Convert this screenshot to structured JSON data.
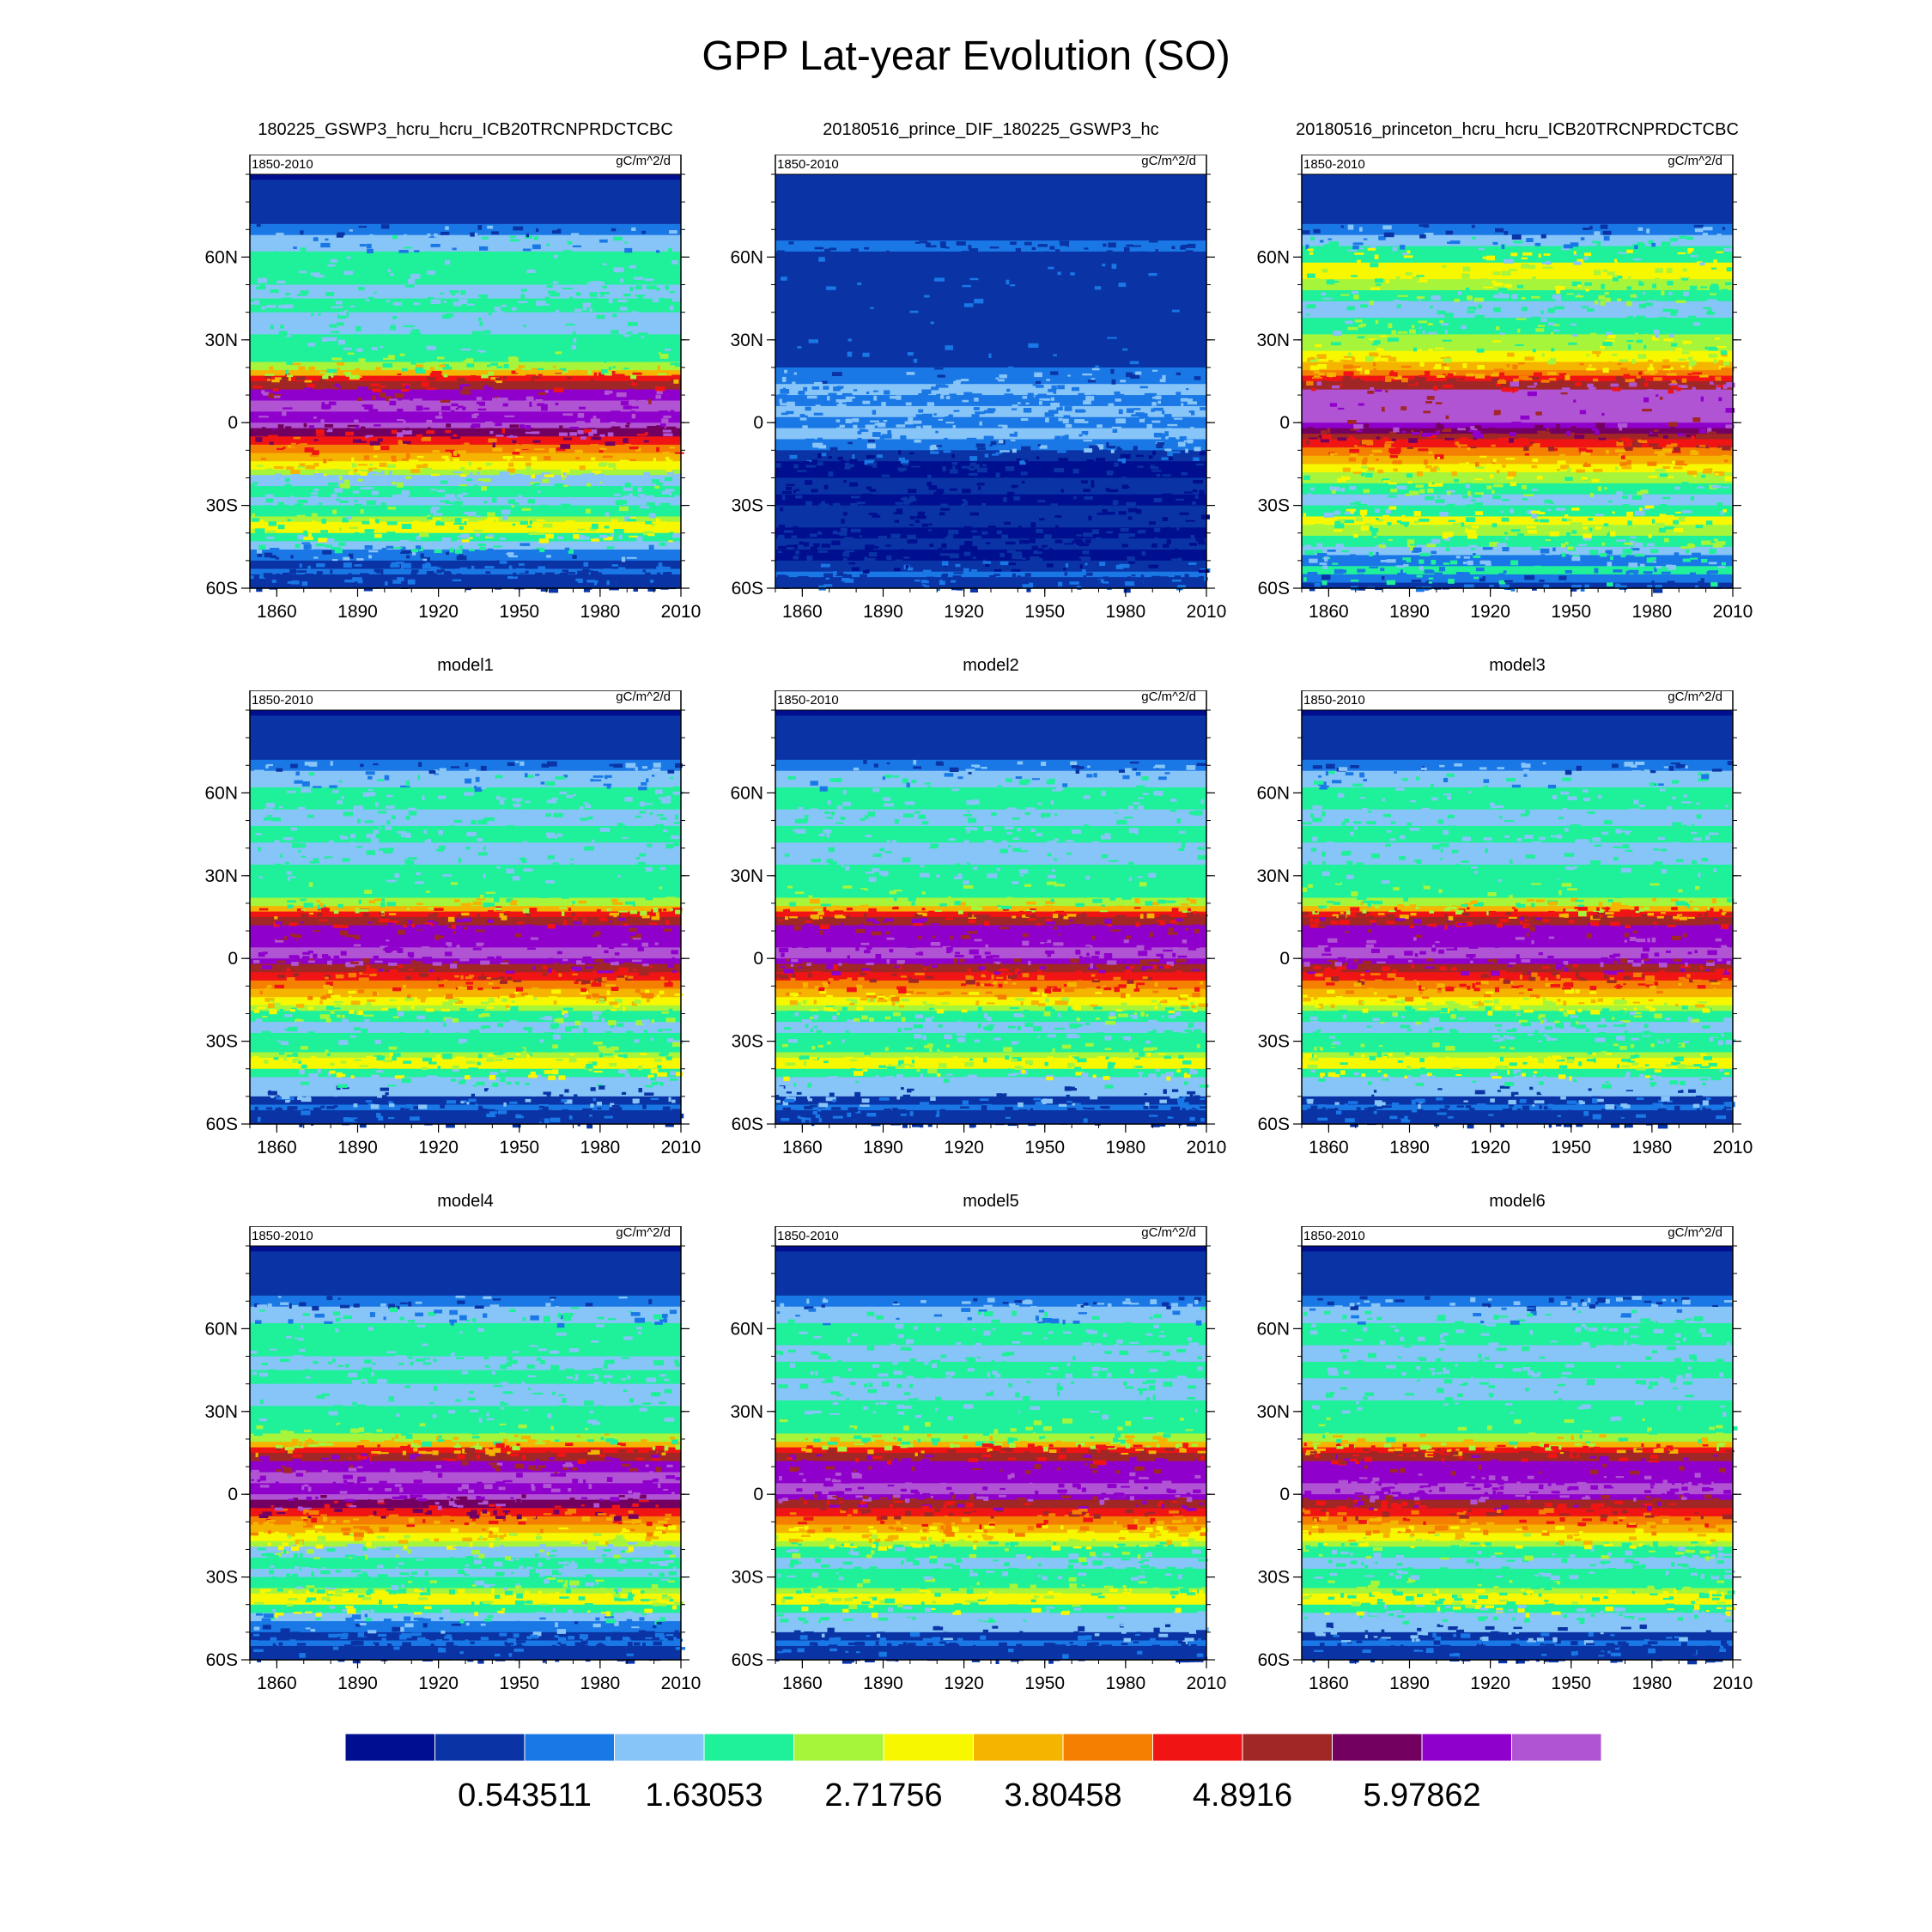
{
  "figure": {
    "title": "GPP Lat-year Evolution (SO)"
  },
  "chart_data": [
    {
      "type": "heatmap",
      "title": "180225_GSWP3_hcru_hcru_ICB20TRCNPRDCTCBC",
      "left_label": "1850-2010",
      "right_label": "gC/m^2/d",
      "pattern": "control",
      "x_ticks": [
        "1860",
        "1890",
        "1920",
        "1950",
        "1980",
        "2010"
      ],
      "y_ticks": [
        "60N",
        "30N",
        "0",
        "30S",
        "60S"
      ],
      "xlim": [
        1850,
        2010
      ],
      "ylim": [
        -60,
        90
      ]
    },
    {
      "type": "heatmap",
      "title": "20180516_prince_DIF_180225_GSWP3_hc",
      "left_label": "1850-2010",
      "right_label": "gC/m^2/d",
      "pattern": "diff",
      "x_ticks": [
        "1860",
        "1890",
        "1920",
        "1950",
        "1980",
        "2010"
      ],
      "y_ticks": [
        "60N",
        "30N",
        "0",
        "30S",
        "60S"
      ],
      "xlim": [
        1850,
        2010
      ],
      "ylim": [
        -60,
        90
      ]
    },
    {
      "type": "heatmap",
      "title": "20180516_princeton_hcru_hcru_ICB20TRCNPRDCTCBC",
      "left_label": "1850-2010",
      "right_label": "gC/m^2/d",
      "pattern": "princeton",
      "x_ticks": [
        "1860",
        "1890",
        "1920",
        "1950",
        "1980",
        "2010"
      ],
      "y_ticks": [
        "60N",
        "30N",
        "0",
        "30S",
        "60S"
      ],
      "xlim": [
        1850,
        2010
      ],
      "ylim": [
        -60,
        90
      ]
    },
    {
      "type": "heatmap",
      "title": "model1",
      "left_label": "1850-2010",
      "right_label": "gC/m^2/d",
      "pattern": "model",
      "x_ticks": [
        "1860",
        "1890",
        "1920",
        "1950",
        "1980",
        "2010"
      ],
      "y_ticks": [
        "60N",
        "30N",
        "0",
        "30S",
        "60S"
      ],
      "xlim": [
        1850,
        2010
      ],
      "ylim": [
        -60,
        90
      ]
    },
    {
      "type": "heatmap",
      "title": "model2",
      "left_label": "1850-2010",
      "right_label": "gC/m^2/d",
      "pattern": "model",
      "x_ticks": [
        "1860",
        "1890",
        "1920",
        "1950",
        "1980",
        "2010"
      ],
      "y_ticks": [
        "60N",
        "30N",
        "0",
        "30S",
        "60S"
      ],
      "xlim": [
        1850,
        2010
      ],
      "ylim": [
        -60,
        90
      ]
    },
    {
      "type": "heatmap",
      "title": "model3",
      "left_label": "1850-2010",
      "right_label": "gC/m^2/d",
      "pattern": "model",
      "x_ticks": [
        "1860",
        "1890",
        "1920",
        "1950",
        "1980",
        "2010"
      ],
      "y_ticks": [
        "60N",
        "30N",
        "0",
        "30S",
        "60S"
      ],
      "xlim": [
        1850,
        2010
      ],
      "ylim": [
        -60,
        90
      ]
    },
    {
      "type": "heatmap",
      "title": "model4",
      "left_label": "1850-2010",
      "right_label": "gC/m^2/d",
      "pattern": "control",
      "x_ticks": [
        "1860",
        "1890",
        "1920",
        "1950",
        "1980",
        "2010"
      ],
      "y_ticks": [
        "60N",
        "30N",
        "0",
        "30S",
        "60S"
      ],
      "xlim": [
        1850,
        2010
      ],
      "ylim": [
        -60,
        90
      ]
    },
    {
      "type": "heatmap",
      "title": "model5",
      "left_label": "1850-2010",
      "right_label": "gC/m^2/d",
      "pattern": "model",
      "x_ticks": [
        "1860",
        "1890",
        "1920",
        "1950",
        "1980",
        "2010"
      ],
      "y_ticks": [
        "60N",
        "30N",
        "0",
        "30S",
        "60S"
      ],
      "xlim": [
        1850,
        2010
      ],
      "ylim": [
        -60,
        90
      ]
    },
    {
      "type": "heatmap",
      "title": "model6",
      "left_label": "1850-2010",
      "right_label": "gC/m^2/d",
      "pattern": "model",
      "x_ticks": [
        "1860",
        "1890",
        "1920",
        "1950",
        "1980",
        "2010"
      ],
      "y_ticks": [
        "60N",
        "30N",
        "0",
        "30S",
        "60S"
      ],
      "xlim": [
        1850,
        2010
      ],
      "ylim": [
        -60,
        90
      ]
    }
  ],
  "colorbar": {
    "colors": [
      "#000f8f",
      "#0a34a6",
      "#1a78e6",
      "#87c4f7",
      "#1ff09a",
      "#a6f53a",
      "#f7f700",
      "#f5b400",
      "#f57f00",
      "#f01414",
      "#a12626",
      "#730060",
      "#9000cc",
      "#b054d4"
    ],
    "labels": [
      "0.543511",
      "1.63053",
      "2.71756",
      "3.80458",
      "4.8916",
      "5.97862"
    ]
  }
}
